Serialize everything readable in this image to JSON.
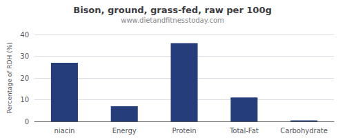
{
  "chart_data": {
    "type": "bar",
    "title": "Bison, ground, grass-fed, raw per 100g",
    "subtitle": "www.dietandfitnesstoday.com",
    "categories": [
      "niacin",
      "Energy",
      "Protein",
      "Total-Fat",
      "Carbohydrate"
    ],
    "values": [
      27,
      7,
      36,
      11,
      0.5
    ],
    "color": "#253d7a",
    "ylabel": "Percentage of RDH (%)",
    "ylim": [
      0,
      40
    ],
    "yticks": [
      0,
      10,
      20,
      30,
      40
    ],
    "grid": true
  }
}
